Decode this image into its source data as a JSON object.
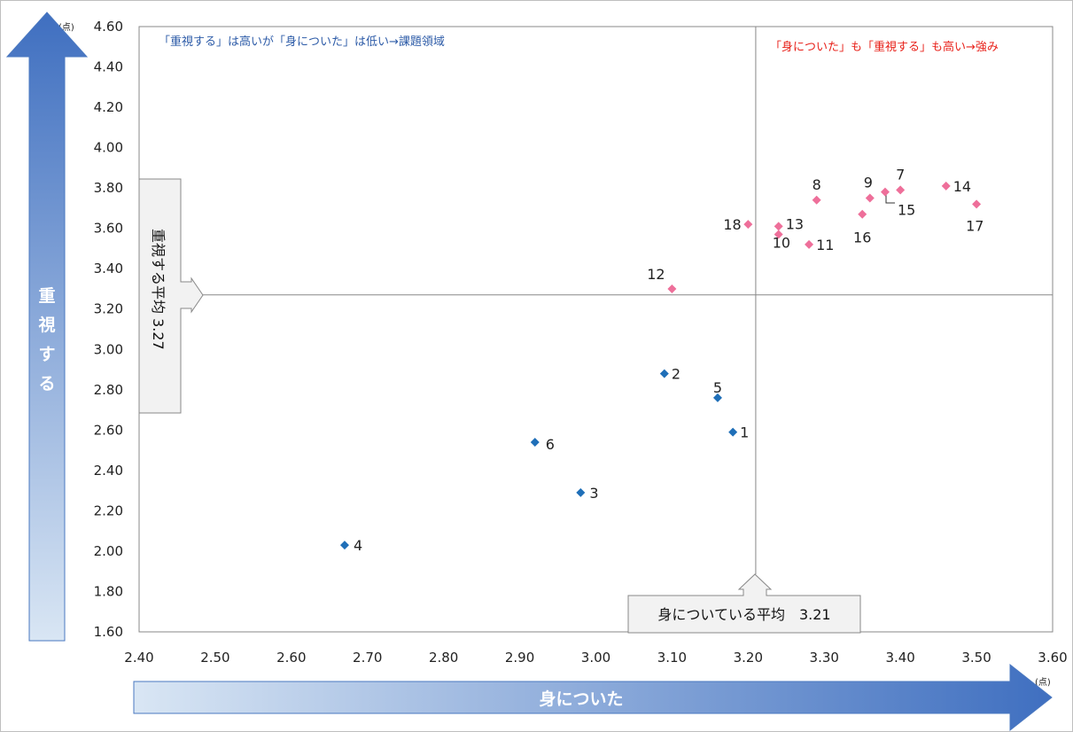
{
  "chart_data": {
    "type": "scatter",
    "xlim": [
      2.4,
      3.6
    ],
    "ylim": [
      1.6,
      4.6
    ],
    "x_ticks": [
      "2.40",
      "2.50",
      "2.60",
      "2.70",
      "2.80",
      "2.90",
      "3.00",
      "3.10",
      "3.20",
      "3.30",
      "3.40",
      "3.50",
      "3.60"
    ],
    "y_ticks": [
      "1.60",
      "1.80",
      "2.00",
      "2.20",
      "2.40",
      "2.60",
      "2.80",
      "3.00",
      "3.20",
      "3.40",
      "3.60",
      "3.80",
      "4.00",
      "4.20",
      "4.40",
      "4.60"
    ],
    "x_unit": "(点)",
    "y_unit": "(点)",
    "xlabel": "身についた",
    "ylabel": "重視する",
    "x_average": {
      "value": 3.21,
      "label": "身についている平均　3.21"
    },
    "y_average": {
      "value": 3.27,
      "label": "重視する平均 3.27"
    },
    "quadrant_labels": {
      "top_left": {
        "text": "「重視する」は高いが「身についた」は低い→課題領域",
        "color": "#2E5CA8"
      },
      "top_right": {
        "text": "「身についた」も「重視する」も高い→強み",
        "color": "#E8221B"
      }
    },
    "colors": {
      "low": "#1F6FB8",
      "high": "#EE6F9A",
      "arrow_dark": "#3F6FC0",
      "arrow_light": "#D9E6F4"
    },
    "points": [
      {
        "label": "1",
        "x": 3.18,
        "y": 2.59,
        "group": "low"
      },
      {
        "label": "2",
        "x": 3.09,
        "y": 2.88,
        "group": "low"
      },
      {
        "label": "3",
        "x": 2.98,
        "y": 2.29,
        "group": "low"
      },
      {
        "label": "4",
        "x": 2.67,
        "y": 2.03,
        "group": "low"
      },
      {
        "label": "5",
        "x": 3.16,
        "y": 2.76,
        "group": "low"
      },
      {
        "label": "6",
        "x": 2.92,
        "y": 2.54,
        "group": "low"
      },
      {
        "label": "7",
        "x": 3.4,
        "y": 3.79,
        "group": "high"
      },
      {
        "label": "8",
        "x": 3.29,
        "y": 3.74,
        "group": "high"
      },
      {
        "label": "9",
        "x": 3.36,
        "y": 3.75,
        "group": "high"
      },
      {
        "label": "10",
        "x": 3.24,
        "y": 3.57,
        "group": "high"
      },
      {
        "label": "11",
        "x": 3.28,
        "y": 3.52,
        "group": "high"
      },
      {
        "label": "12",
        "x": 3.1,
        "y": 3.3,
        "group": "high"
      },
      {
        "label": "13",
        "x": 3.24,
        "y": 3.61,
        "group": "high"
      },
      {
        "label": "14",
        "x": 3.46,
        "y": 3.81,
        "group": "high"
      },
      {
        "label": "15",
        "x": 3.38,
        "y": 3.78,
        "group": "high"
      },
      {
        "label": "16",
        "x": 3.35,
        "y": 3.67,
        "group": "high"
      },
      {
        "label": "17",
        "x": 3.5,
        "y": 3.72,
        "group": "high"
      },
      {
        "label": "18",
        "x": 3.2,
        "y": 3.62,
        "group": "high"
      }
    ]
  }
}
